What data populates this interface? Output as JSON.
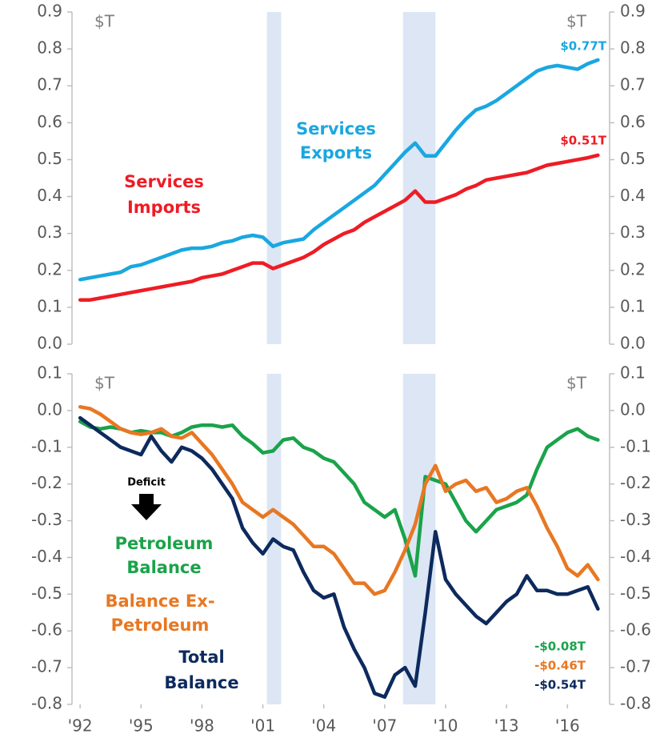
{
  "chart_data": [
    {
      "type": "line",
      "x": [
        1992,
        1992.5,
        1993,
        1993.5,
        1994,
        1994.5,
        1995,
        1995.5,
        1996,
        1996.5,
        1997,
        1997.5,
        1998,
        1998.5,
        1999,
        1999.5,
        2000,
        2000.5,
        2001,
        2001.5,
        2002,
        2002.5,
        2003,
        2003.5,
        2004,
        2004.5,
        2005,
        2005.5,
        2006,
        2006.5,
        2007,
        2007.5,
        2008,
        2008.5,
        2009,
        2009.5,
        2010,
        2010.5,
        2011,
        2011.5,
        2012,
        2012.5,
        2013,
        2013.5,
        2014,
        2014.5,
        2015,
        2015.5,
        2016,
        2016.5,
        2017,
        2017.5
      ],
      "series": [
        {
          "name": "Services Exports",
          "color": "#1aa7e0",
          "values": [
            0.175,
            0.18,
            0.185,
            0.19,
            0.195,
            0.21,
            0.215,
            0.225,
            0.235,
            0.245,
            0.255,
            0.26,
            0.26,
            0.265,
            0.275,
            0.28,
            0.29,
            0.295,
            0.29,
            0.265,
            0.275,
            0.28,
            0.285,
            0.31,
            0.33,
            0.35,
            0.37,
            0.39,
            0.41,
            0.43,
            0.46,
            0.49,
            0.52,
            0.545,
            0.51,
            0.51,
            0.545,
            0.58,
            0.61,
            0.635,
            0.645,
            0.66,
            0.68,
            0.7,
            0.72,
            0.74,
            0.75,
            0.755,
            0.75,
            0.745,
            0.76,
            0.77
          ]
        },
        {
          "name": "Services Imports",
          "color": "#ee1c25",
          "values": [
            0.12,
            0.12,
            0.125,
            0.13,
            0.135,
            0.14,
            0.145,
            0.15,
            0.155,
            0.16,
            0.165,
            0.17,
            0.18,
            0.185,
            0.19,
            0.2,
            0.21,
            0.22,
            0.22,
            0.205,
            0.215,
            0.225,
            0.235,
            0.25,
            0.27,
            0.285,
            0.3,
            0.31,
            0.33,
            0.345,
            0.36,
            0.375,
            0.39,
            0.415,
            0.385,
            0.385,
            0.395,
            0.405,
            0.42,
            0.43,
            0.445,
            0.45,
            0.455,
            0.46,
            0.465,
            0.475,
            0.485,
            0.49,
            0.495,
            0.5,
            0.505,
            0.512
          ]
        }
      ],
      "ylim": [
        0,
        0.9
      ],
      "yticks": [
        {
          "value": 0,
          "label": "0.0"
        },
        0.1,
        0.2,
        0.3,
        0.4,
        0.5,
        0.6,
        0.7,
        0.8,
        0.9
      ],
      "y2lim": [
        0,
        0.9
      ],
      "y2ticks": [
        {
          "value": 0,
          "label": "0.0"
        },
        0.1,
        0.2,
        0.3,
        0.4,
        0.5,
        0.6,
        0.7,
        0.8,
        0.9
      ],
      "xlim": [
        1991.6,
        2017.8
      ],
      "shaded_regions": [
        [
          2001.2,
          2001.9
        ],
        [
          2007.9,
          2009.5
        ]
      ],
      "shade_color": "#dce6f4",
      "annotations": [
        "$T",
        "$T",
        "Services",
        "Exports",
        "Services",
        "Imports",
        "$0.77T",
        "$0.51T"
      ]
    },
    {
      "type": "line",
      "x": [
        1992,
        1992.5,
        1993,
        1993.5,
        1994,
        1994.5,
        1995,
        1995.5,
        1996,
        1996.5,
        1997,
        1997.5,
        1998,
        1998.5,
        1999,
        1999.5,
        2000,
        2000.5,
        2001,
        2001.5,
        2002,
        2002.5,
        2003,
        2003.5,
        2004,
        2004.5,
        2005,
        2005.5,
        2006,
        2006.5,
        2007,
        2007.5,
        2008,
        2008.5,
        2009,
        2009.5,
        2010,
        2010.5,
        2011,
        2011.5,
        2012,
        2012.5,
        2013,
        2013.5,
        2014,
        2014.5,
        2015,
        2015.5,
        2016,
        2016.5,
        2017,
        2017.5
      ],
      "series": [
        {
          "name": "Petroleum Balance",
          "color": "#1aa34a",
          "values": [
            -0.03,
            -0.045,
            -0.05,
            -0.045,
            -0.05,
            -0.06,
            -0.055,
            -0.06,
            -0.06,
            -0.07,
            -0.06,
            -0.045,
            -0.04,
            -0.04,
            -0.045,
            -0.04,
            -0.07,
            -0.09,
            -0.115,
            -0.11,
            -0.08,
            -0.075,
            -0.1,
            -0.11,
            -0.13,
            -0.14,
            -0.17,
            -0.2,
            -0.25,
            -0.27,
            -0.29,
            -0.27,
            -0.35,
            -0.45,
            -0.18,
            -0.19,
            -0.2,
            -0.25,
            -0.3,
            -0.33,
            -0.3,
            -0.27,
            -0.26,
            -0.25,
            -0.23,
            -0.16,
            -0.1,
            -0.08,
            -0.06,
            -0.05,
            -0.07,
            -0.08
          ]
        },
        {
          "name": "Balance Ex-Petroleum",
          "color": "#e87722",
          "values": [
            0.01,
            0.005,
            -0.01,
            -0.03,
            -0.05,
            -0.06,
            -0.065,
            -0.06,
            -0.05,
            -0.07,
            -0.075,
            -0.06,
            -0.09,
            -0.12,
            -0.16,
            -0.2,
            -0.25,
            -0.27,
            -0.29,
            -0.27,
            -0.29,
            -0.31,
            -0.34,
            -0.37,
            -0.37,
            -0.39,
            -0.43,
            -0.47,
            -0.47,
            -0.5,
            -0.49,
            -0.44,
            -0.38,
            -0.31,
            -0.2,
            -0.15,
            -0.22,
            -0.2,
            -0.19,
            -0.22,
            -0.21,
            -0.25,
            -0.24,
            -0.22,
            -0.21,
            -0.26,
            -0.32,
            -0.37,
            -0.43,
            -0.45,
            -0.42,
            -0.46
          ]
        },
        {
          "name": "Total Balance",
          "color": "#0d2a5e",
          "values": [
            -0.02,
            -0.04,
            -0.06,
            -0.08,
            -0.1,
            -0.11,
            -0.12,
            -0.07,
            -0.11,
            -0.14,
            -0.1,
            -0.11,
            -0.13,
            -0.16,
            -0.2,
            -0.24,
            -0.32,
            -0.36,
            -0.39,
            -0.35,
            -0.37,
            -0.38,
            -0.44,
            -0.49,
            -0.51,
            -0.5,
            -0.59,
            -0.65,
            -0.7,
            -0.77,
            -0.78,
            -0.72,
            -0.7,
            -0.75,
            -0.55,
            -0.33,
            -0.46,
            -0.5,
            -0.53,
            -0.56,
            -0.58,
            -0.55,
            -0.52,
            -0.5,
            -0.45,
            -0.49,
            -0.49,
            -0.5,
            -0.5,
            -0.49,
            -0.48,
            -0.54
          ]
        }
      ],
      "ylim": [
        -0.8,
        0.1
      ],
      "yticks": [
        -0.8,
        -0.7,
        -0.6,
        -0.5,
        -0.4,
        -0.3,
        -0.2,
        -0.1,
        {
          "value": 0,
          "label": "0.0"
        },
        0.1
      ],
      "y2lim": [
        -0.8,
        0.1
      ],
      "y2ticks": [
        -0.8,
        -0.7,
        -0.6,
        -0.5,
        -0.4,
        -0.3,
        -0.2,
        -0.1,
        {
          "value": 0,
          "label": "0.0"
        },
        0.1
      ],
      "xlim": [
        1991.6,
        2017.8
      ],
      "xticks": [
        {
          "value": 1992,
          "label": "'92"
        },
        {
          "value": 1995,
          "label": "'95"
        },
        {
          "value": 1998,
          "label": "'98"
        },
        {
          "value": 2001,
          "label": "'01"
        },
        {
          "value": 2004,
          "label": "'04"
        },
        {
          "value": 2007,
          "label": "'07"
        },
        {
          "value": 2010,
          "label": "'10"
        },
        {
          "value": 2013,
          "label": "'13"
        },
        {
          "value": 2016,
          "label": "'16"
        }
      ],
      "shaded_regions": [
        [
          2001.2,
          2001.9
        ],
        [
          2007.9,
          2009.5
        ]
      ],
      "shade_color": "#dce6f4",
      "annotations": [
        "$T",
        "$T",
        "Deficit",
        "Petroleum",
        "Balance",
        "Balance Ex-",
        "Petroleum",
        "Total",
        "Balance",
        "-$0.08T",
        "-$0.46T",
        "-$0.54T"
      ]
    }
  ]
}
